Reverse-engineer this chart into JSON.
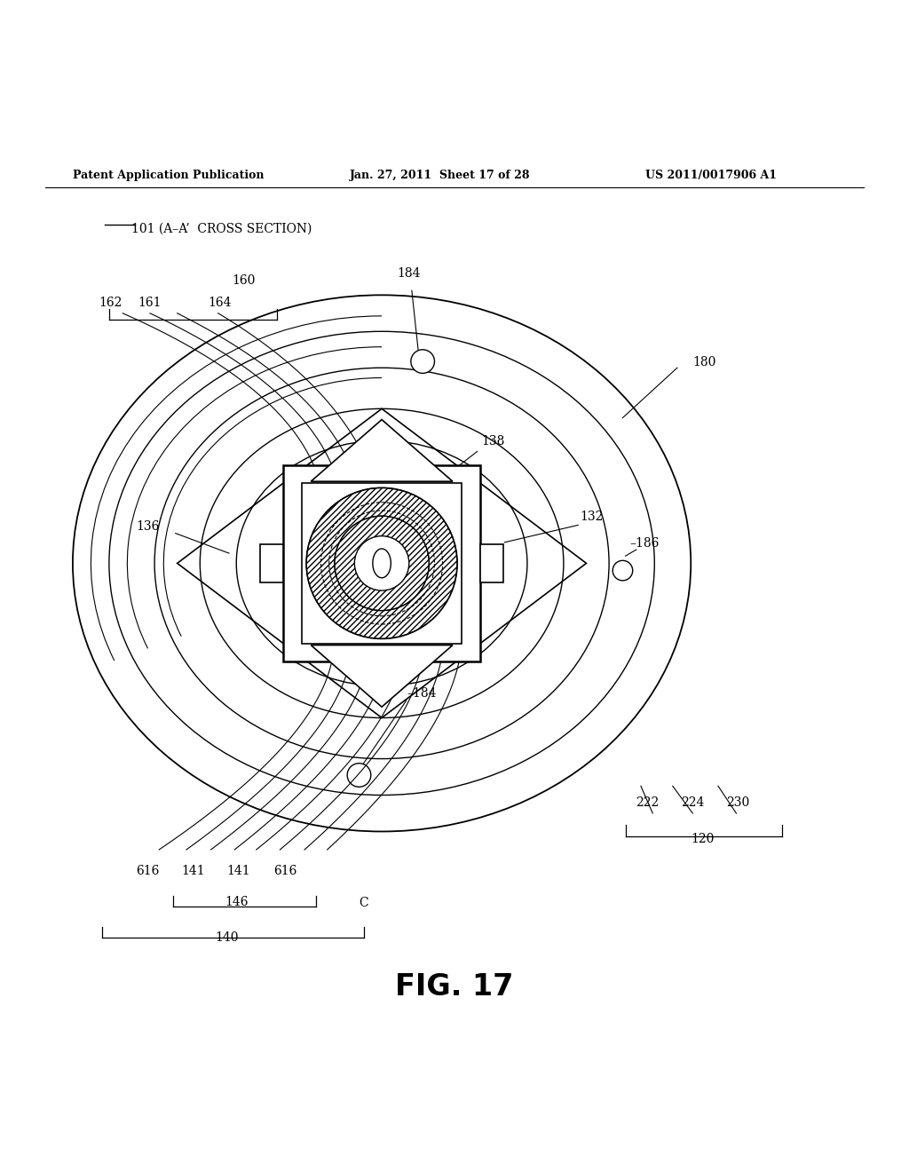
{
  "bg_color": "#ffffff",
  "fig_width": 10.24,
  "fig_height": 13.2,
  "header_left": "Patent Application Publication",
  "header_mid": "Jan. 27, 2011  Sheet 17 of 28",
  "header_right": "US 2011/0017906 A1",
  "fig_label": "FIG. 17",
  "section_label": "101 (A–A’  CROSS SECTION)"
}
